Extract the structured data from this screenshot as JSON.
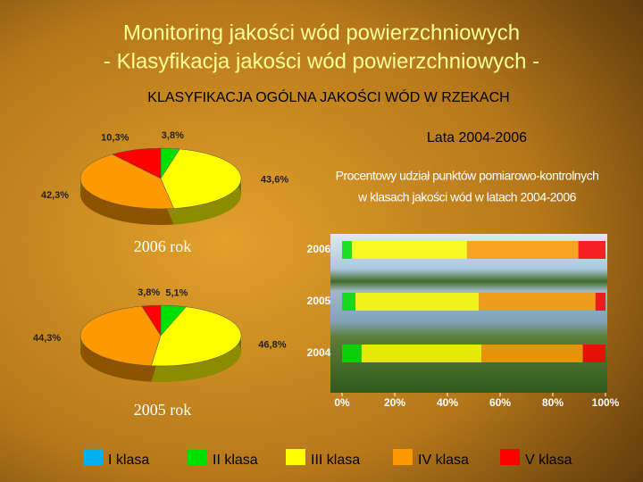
{
  "slide": {
    "title_line1": "Monitoring jakości wód powierzchniowych",
    "title_line2": "- Klasyfikacja jakości wód powierzchniowych -",
    "subtitle": "KLASYFIKACJA OGÓLNA JAKOŚCI WÓD W RZEKACH"
  },
  "chart_data": [
    {
      "type": "pie",
      "title": "2006 rok",
      "values": [
        3.8,
        43.6,
        42.3,
        10.3
      ],
      "value_labels": [
        "3,8%",
        "43,6%",
        "42,3%",
        "10,3%"
      ],
      "colors": [
        "#00e000",
        "#ffff00",
        "#ff9900",
        "#ff0000"
      ]
    },
    {
      "type": "pie",
      "title": "2005 rok",
      "values": [
        5.1,
        46.8,
        44.3,
        3.8
      ],
      "value_labels": [
        "5,1%",
        "46,8%",
        "44,3%",
        "3,8%"
      ],
      "colors": [
        "#00e000",
        "#ffff00",
        "#ff9900",
        "#ff0000"
      ]
    },
    {
      "type": "stacked-bar",
      "orientation": "horizontal",
      "title": "Lata 2004-2006",
      "subtitle": [
        "Procentowy udział  punktów pomiarowo-kontrolnych",
        "w klasach jakości wód w latach 2004-2006"
      ],
      "categories": [
        "2006",
        "2005",
        "2004"
      ],
      "series": [
        {
          "name": "I klasa",
          "color": "#00b0f0",
          "values": [
            0,
            0,
            0
          ]
        },
        {
          "name": "II klasa",
          "color": "#00e000",
          "values": [
            3.8,
            5.1,
            7.4
          ]
        },
        {
          "name": "III klasa",
          "color": "#ffff00",
          "values": [
            43.6,
            46.8,
            45.5
          ]
        },
        {
          "name": "IV klasa",
          "color": "#ff9900",
          "values": [
            42.3,
            44.3,
            38.5
          ]
        },
        {
          "name": "V klasa",
          "color": "#ff0000",
          "values": [
            10.3,
            3.8,
            8.6
          ]
        }
      ],
      "xlim": [
        0,
        100
      ],
      "xticks": [
        {
          "value": 0,
          "label": "0%"
        },
        {
          "value": 20,
          "label": "20%"
        },
        {
          "value": 40,
          "label": "40%"
        },
        {
          "value": 60,
          "label": "60%"
        },
        {
          "value": 80,
          "label": "80%"
        },
        {
          "value": 100,
          "label": "100%"
        }
      ]
    }
  ]
}
